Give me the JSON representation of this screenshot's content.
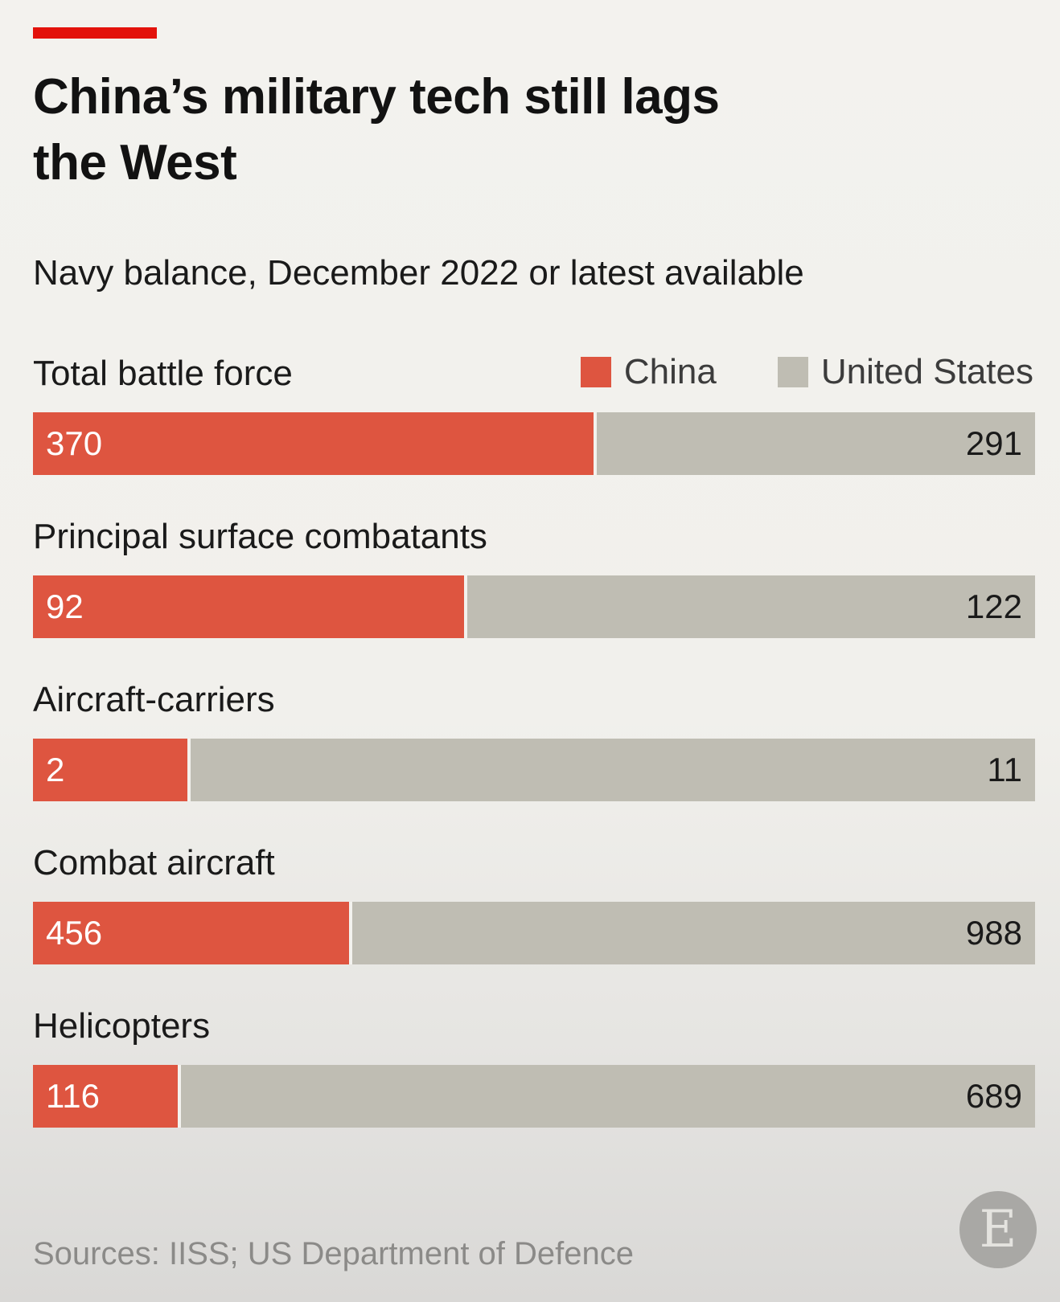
{
  "chart_data": {
    "type": "bar",
    "title": "China’s military tech still lags the West",
    "subtitle": "Navy balance, December 2022 or latest available",
    "legend": [
      {
        "name": "China",
        "color": "#de5540"
      },
      {
        "name": "United States",
        "color": "#bfbdb3"
      }
    ],
    "legend_position": "top-right",
    "stacked": "100%",
    "categories": [
      "Total battle force",
      "Principal surface combatants",
      "Aircraft-carriers",
      "Combat aircraft",
      "Helicopters"
    ],
    "series": [
      {
        "name": "China",
        "values": [
          370,
          92,
          2,
          456,
          116
        ]
      },
      {
        "name": "United States",
        "values": [
          291,
          122,
          11,
          988,
          689
        ]
      }
    ],
    "source": "Sources: IISS; US Department of Defence"
  },
  "colors": {
    "accent_rule": "#e3120b",
    "china": "#de5540",
    "united_states": "#bfbdb3"
  },
  "logo": {
    "letter": "E"
  }
}
